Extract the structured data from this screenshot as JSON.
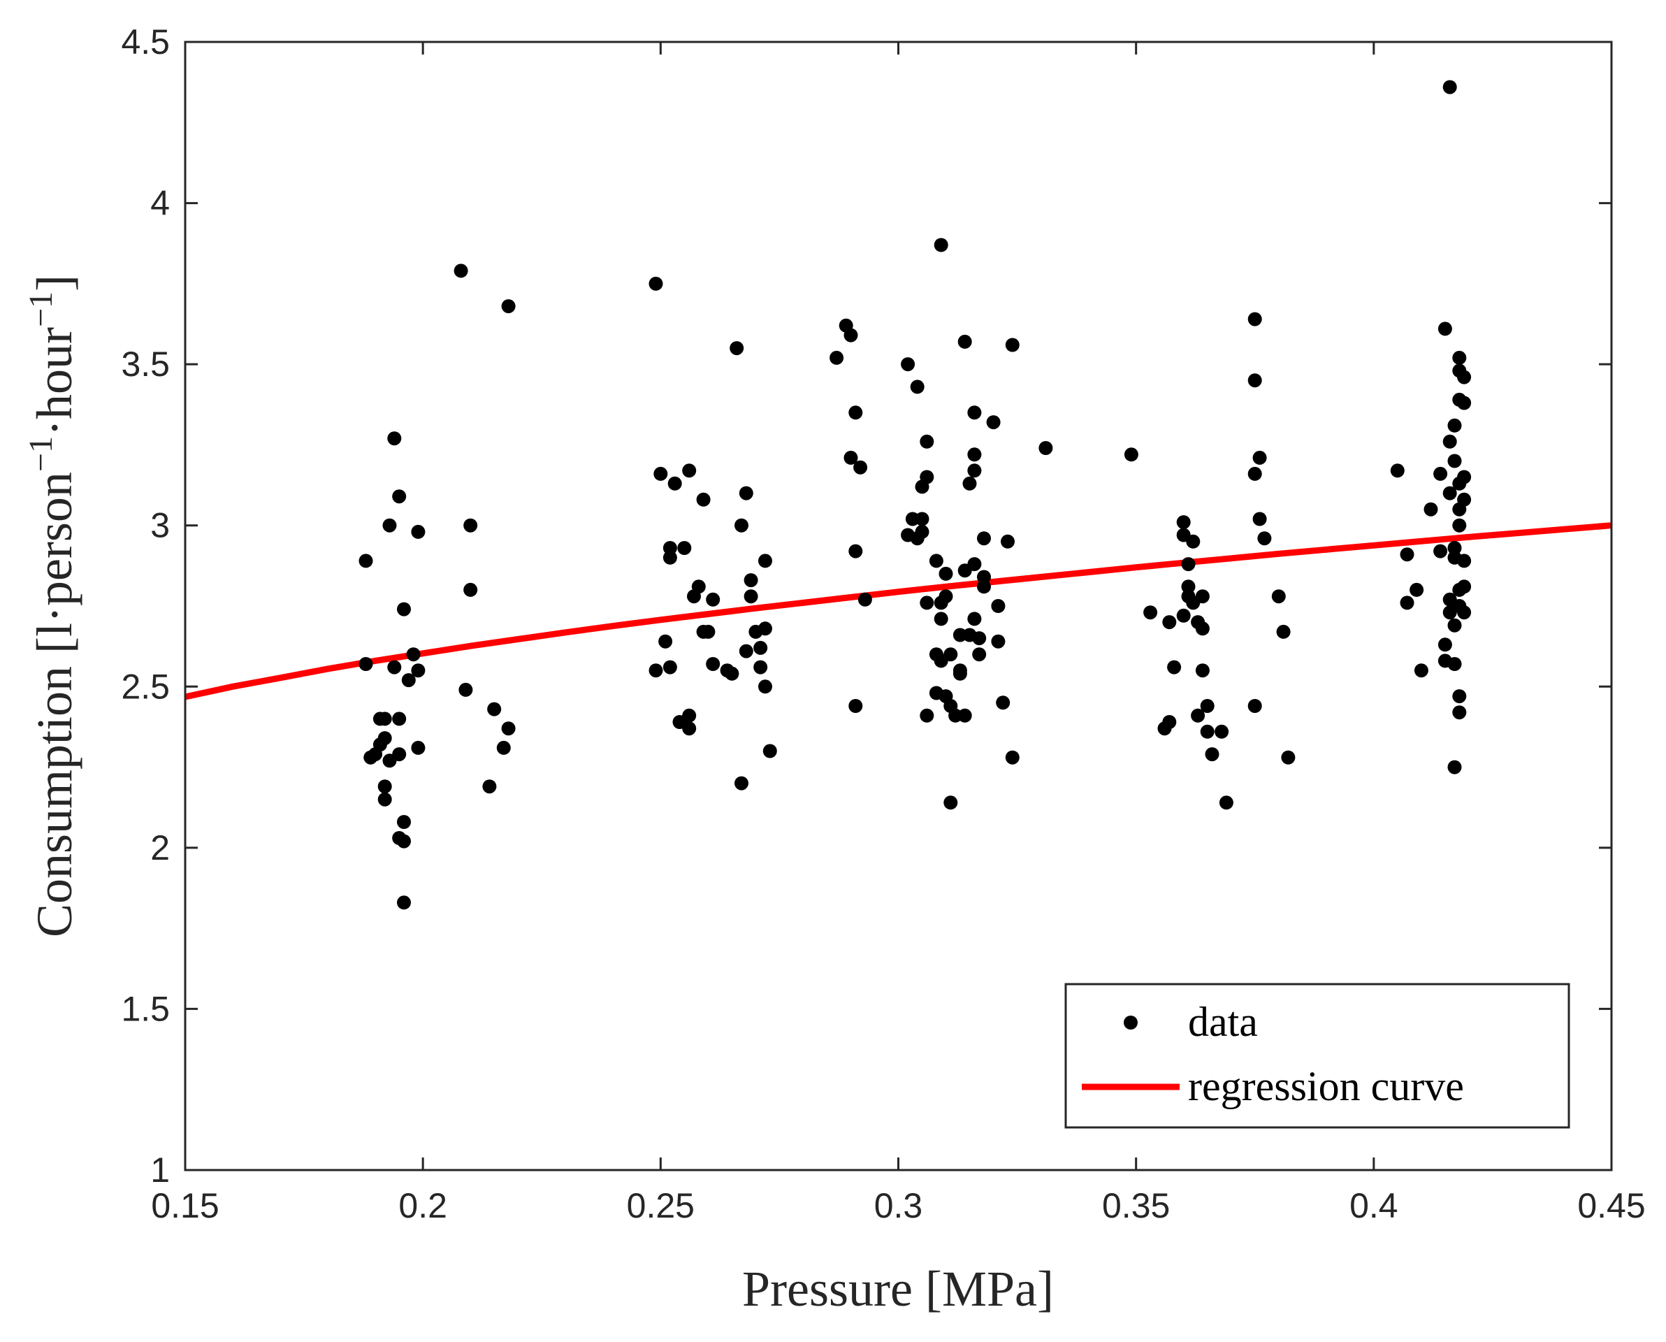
{
  "chart_data": {
    "type": "scatter",
    "title": "",
    "xlabel": "Pressure [MPa]",
    "ylabel": "Consumption [l·person",
    "ylabel_sup1": "−1",
    "ylabel_mid": "·hour",
    "ylabel_sup2": "−1",
    "ylabel_end": "]",
    "xlim": [
      0.15,
      0.45
    ],
    "ylim": [
      1,
      4.5
    ],
    "xticks": [
      0.15,
      0.2,
      0.25,
      0.3,
      0.35,
      0.4,
      0.45
    ],
    "yticks": [
      1,
      1.5,
      2,
      2.5,
      3,
      3.5,
      4,
      4.5
    ],
    "xtick_labels": [
      "0.15",
      "0.2",
      "0.25",
      "0.3",
      "0.35",
      "0.4",
      "0.45"
    ],
    "ytick_labels": [
      "1",
      "1.5",
      "2",
      "2.5",
      "3",
      "3.5",
      "4",
      "4.5"
    ],
    "legend_position": "bottom-right",
    "grid": false,
    "colors": {
      "data": "#000000",
      "regression": "#ff0000",
      "axis": "#262626"
    },
    "series": [
      {
        "name": "data",
        "kind": "scatter",
        "points": [
          [
            0.188,
            2.89
          ],
          [
            0.188,
            2.57
          ],
          [
            0.189,
            2.28
          ],
          [
            0.19,
            2.29
          ],
          [
            0.191,
            2.32
          ],
          [
            0.191,
            2.4
          ],
          [
            0.192,
            2.19
          ],
          [
            0.192,
            2.15
          ],
          [
            0.192,
            2.34
          ],
          [
            0.193,
            3.0
          ],
          [
            0.193,
            2.27
          ],
          [
            0.194,
            3.27
          ],
          [
            0.194,
            2.56
          ],
          [
            0.195,
            3.09
          ],
          [
            0.195,
            2.29
          ],
          [
            0.195,
            2.4
          ],
          [
            0.195,
            2.03
          ],
          [
            0.196,
            2.08
          ],
          [
            0.196,
            2.02
          ],
          [
            0.196,
            1.83
          ],
          [
            0.196,
            2.74
          ],
          [
            0.197,
            2.52
          ],
          [
            0.198,
            2.6
          ],
          [
            0.199,
            2.55
          ],
          [
            0.199,
            2.98
          ],
          [
            0.199,
            2.31
          ],
          [
            0.192,
            2.4
          ],
          [
            0.208,
            3.79
          ],
          [
            0.209,
            2.49
          ],
          [
            0.21,
            3.0
          ],
          [
            0.21,
            2.8
          ],
          [
            0.214,
            2.19
          ],
          [
            0.215,
            2.43
          ],
          [
            0.217,
            2.31
          ],
          [
            0.218,
            2.37
          ],
          [
            0.218,
            3.68
          ],
          [
            0.249,
            3.75
          ],
          [
            0.249,
            2.55
          ],
          [
            0.25,
            3.16
          ],
          [
            0.251,
            2.64
          ],
          [
            0.252,
            2.93
          ],
          [
            0.252,
            2.9
          ],
          [
            0.252,
            2.56
          ],
          [
            0.253,
            3.13
          ],
          [
            0.254,
            2.39
          ],
          [
            0.255,
            2.93
          ],
          [
            0.256,
            3.17
          ],
          [
            0.256,
            2.37
          ],
          [
            0.256,
            2.41
          ],
          [
            0.257,
            2.78
          ],
          [
            0.258,
            2.81
          ],
          [
            0.259,
            3.08
          ],
          [
            0.259,
            2.67
          ],
          [
            0.26,
            2.67
          ],
          [
            0.261,
            2.57
          ],
          [
            0.261,
            2.77
          ],
          [
            0.264,
            2.55
          ],
          [
            0.265,
            2.54
          ],
          [
            0.266,
            3.55
          ],
          [
            0.267,
            3.0
          ],
          [
            0.267,
            2.2
          ],
          [
            0.268,
            2.61
          ],
          [
            0.268,
            3.1
          ],
          [
            0.269,
            2.83
          ],
          [
            0.269,
            2.78
          ],
          [
            0.27,
            2.67
          ],
          [
            0.271,
            2.62
          ],
          [
            0.271,
            2.56
          ],
          [
            0.272,
            2.68
          ],
          [
            0.272,
            2.89
          ],
          [
            0.272,
            2.5
          ],
          [
            0.273,
            2.3
          ],
          [
            0.287,
            3.52
          ],
          [
            0.289,
            3.62
          ],
          [
            0.29,
            3.59
          ],
          [
            0.29,
            3.21
          ],
          [
            0.291,
            3.35
          ],
          [
            0.291,
            2.92
          ],
          [
            0.291,
            2.44
          ],
          [
            0.292,
            3.18
          ],
          [
            0.293,
            2.77
          ],
          [
            0.302,
            3.5
          ],
          [
            0.302,
            2.97
          ],
          [
            0.303,
            3.02
          ],
          [
            0.304,
            3.43
          ],
          [
            0.304,
            2.96
          ],
          [
            0.305,
            3.02
          ],
          [
            0.305,
            3.12
          ],
          [
            0.305,
            2.98
          ],
          [
            0.306,
            3.15
          ],
          [
            0.306,
            3.26
          ],
          [
            0.306,
            2.76
          ],
          [
            0.306,
            2.41
          ],
          [
            0.308,
            2.89
          ],
          [
            0.308,
            2.48
          ],
          [
            0.308,
            2.6
          ],
          [
            0.309,
            3.87
          ],
          [
            0.309,
            2.58
          ],
          [
            0.309,
            2.71
          ],
          [
            0.309,
            2.76
          ],
          [
            0.31,
            2.47
          ],
          [
            0.31,
            2.78
          ],
          [
            0.31,
            2.85
          ],
          [
            0.311,
            2.6
          ],
          [
            0.311,
            2.44
          ],
          [
            0.311,
            2.14
          ],
          [
            0.312,
            2.41
          ],
          [
            0.313,
            2.54
          ],
          [
            0.313,
            2.66
          ],
          [
            0.313,
            2.55
          ],
          [
            0.314,
            2.41
          ],
          [
            0.314,
            3.57
          ],
          [
            0.314,
            2.86
          ],
          [
            0.315,
            3.13
          ],
          [
            0.315,
            2.66
          ],
          [
            0.316,
            3.35
          ],
          [
            0.316,
            3.17
          ],
          [
            0.316,
            3.22
          ],
          [
            0.316,
            2.88
          ],
          [
            0.316,
            2.71
          ],
          [
            0.317,
            2.65
          ],
          [
            0.317,
            2.6
          ],
          [
            0.318,
            2.84
          ],
          [
            0.318,
            2.96
          ],
          [
            0.318,
            2.81
          ],
          [
            0.32,
            3.32
          ],
          [
            0.321,
            2.75
          ],
          [
            0.321,
            2.64
          ],
          [
            0.322,
            2.45
          ],
          [
            0.323,
            2.95
          ],
          [
            0.324,
            2.28
          ],
          [
            0.324,
            3.56
          ],
          [
            0.331,
            3.24
          ],
          [
            0.349,
            3.22
          ],
          [
            0.353,
            2.73
          ],
          [
            0.356,
            2.37
          ],
          [
            0.357,
            2.39
          ],
          [
            0.357,
            2.7
          ],
          [
            0.358,
            2.56
          ],
          [
            0.36,
            2.97
          ],
          [
            0.36,
            3.01
          ],
          [
            0.36,
            2.72
          ],
          [
            0.361,
            2.78
          ],
          [
            0.361,
            2.81
          ],
          [
            0.361,
            2.88
          ],
          [
            0.362,
            2.95
          ],
          [
            0.362,
            2.76
          ],
          [
            0.363,
            2.41
          ],
          [
            0.363,
            2.7
          ],
          [
            0.364,
            2.68
          ],
          [
            0.364,
            2.78
          ],
          [
            0.364,
            2.55
          ],
          [
            0.365,
            2.44
          ],
          [
            0.365,
            2.36
          ],
          [
            0.366,
            2.29
          ],
          [
            0.368,
            2.36
          ],
          [
            0.369,
            2.14
          ],
          [
            0.375,
            3.64
          ],
          [
            0.375,
            3.45
          ],
          [
            0.375,
            3.16
          ],
          [
            0.375,
            2.44
          ],
          [
            0.376,
            3.21
          ],
          [
            0.376,
            3.02
          ],
          [
            0.377,
            2.96
          ],
          [
            0.38,
            2.78
          ],
          [
            0.381,
            2.67
          ],
          [
            0.382,
            2.28
          ],
          [
            0.405,
            3.17
          ],
          [
            0.407,
            2.91
          ],
          [
            0.407,
            2.76
          ],
          [
            0.409,
            2.8
          ],
          [
            0.41,
            2.55
          ],
          [
            0.412,
            3.05
          ],
          [
            0.414,
            2.92
          ],
          [
            0.414,
            3.16
          ],
          [
            0.415,
            3.61
          ],
          [
            0.415,
            2.63
          ],
          [
            0.415,
            2.58
          ],
          [
            0.416,
            4.36
          ],
          [
            0.416,
            3.26
          ],
          [
            0.416,
            3.1
          ],
          [
            0.416,
            2.77
          ],
          [
            0.416,
            2.73
          ],
          [
            0.417,
            3.31
          ],
          [
            0.417,
            3.2
          ],
          [
            0.417,
            2.93
          ],
          [
            0.417,
            2.9
          ],
          [
            0.417,
            2.69
          ],
          [
            0.417,
            2.57
          ],
          [
            0.417,
            2.25
          ],
          [
            0.418,
            3.52
          ],
          [
            0.418,
            3.48
          ],
          [
            0.418,
            3.39
          ],
          [
            0.418,
            3.13
          ],
          [
            0.418,
            3.05
          ],
          [
            0.418,
            3.0
          ],
          [
            0.418,
            2.8
          ],
          [
            0.418,
            2.75
          ],
          [
            0.418,
            2.47
          ],
          [
            0.418,
            2.42
          ],
          [
            0.419,
            3.46
          ],
          [
            0.419,
            3.38
          ],
          [
            0.419,
            3.15
          ],
          [
            0.419,
            3.08
          ],
          [
            0.419,
            2.89
          ],
          [
            0.419,
            2.81
          ],
          [
            0.419,
            2.73
          ]
        ]
      },
      {
        "name": "regression curve",
        "legend_label": "regression curve",
        "kind": "line",
        "points": [
          [
            0.15,
            2.468
          ],
          [
            0.16,
            2.5
          ],
          [
            0.17,
            2.527
          ],
          [
            0.18,
            2.555
          ],
          [
            0.19,
            2.58
          ],
          [
            0.2,
            2.603
          ],
          [
            0.21,
            2.626
          ],
          [
            0.22,
            2.647
          ],
          [
            0.23,
            2.668
          ],
          [
            0.24,
            2.688
          ],
          [
            0.25,
            2.707
          ],
          [
            0.26,
            2.725
          ],
          [
            0.27,
            2.743
          ],
          [
            0.28,
            2.76
          ],
          [
            0.29,
            2.777
          ],
          [
            0.3,
            2.794
          ],
          [
            0.31,
            2.81
          ],
          [
            0.32,
            2.825
          ],
          [
            0.33,
            2.84
          ],
          [
            0.34,
            2.855
          ],
          [
            0.35,
            2.87
          ],
          [
            0.36,
            2.884
          ],
          [
            0.37,
            2.898
          ],
          [
            0.38,
            2.912
          ],
          [
            0.39,
            2.925
          ],
          [
            0.4,
            2.938
          ],
          [
            0.41,
            2.951
          ],
          [
            0.42,
            2.964
          ],
          [
            0.43,
            2.976
          ],
          [
            0.44,
            2.988
          ],
          [
            0.45,
            3.0
          ]
        ]
      }
    ]
  }
}
